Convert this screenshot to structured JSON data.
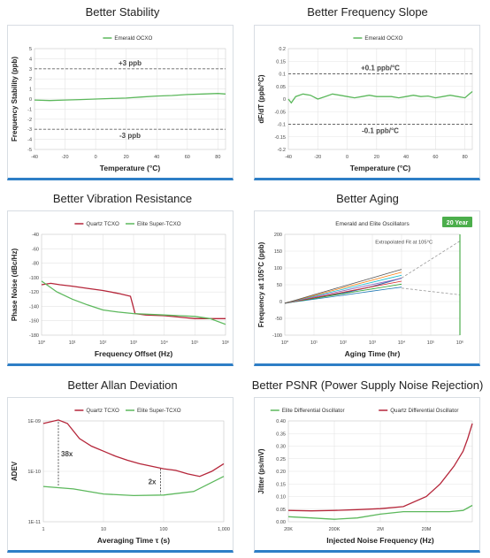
{
  "colors": {
    "green": "#5cb85c",
    "red": "#b5263a",
    "blue": "#2e7ec6",
    "grid": "#e4e4e4",
    "dash": "#666666",
    "dark": "#000000"
  },
  "panels": [
    {
      "id": "p0",
      "title": "Better Stability",
      "legend": [
        "Emerald OCXO"
      ],
      "xlabel": "Temperature (°C)",
      "ylabel": "Frequency Stability (ppb)",
      "annotations": [
        "+3 ppb",
        "-3 ppb"
      ],
      "xticks": [
        "-40",
        "-20",
        "0",
        "20",
        "40",
        "60",
        "80"
      ],
      "yticks": [
        "5",
        "4",
        "3",
        "2",
        "1",
        "0",
        "-1",
        "-2",
        "-3",
        "-4",
        "-5"
      ]
    },
    {
      "id": "p1",
      "title": "Better Frequency Slope",
      "legend": [
        "Emerald OCXO"
      ],
      "xlabel": "Temperature (°C)",
      "ylabel": "dF/dT (ppb/°C)",
      "annotations": [
        "+0.1 ppb/°C",
        "-0.1 ppb/°C"
      ],
      "xticks": [
        "-40",
        "-20",
        "0",
        "20",
        "40",
        "60",
        "80"
      ],
      "yticks": [
        "0.2",
        "0.15",
        "0.1",
        "0.05",
        "0",
        "-0.05",
        "-0.1",
        "-0.15",
        "-0.2"
      ]
    },
    {
      "id": "p2",
      "title": "Better Vibration Resistance",
      "legend": [
        "Quartz TCXO",
        "Elite Super-TCXO"
      ],
      "xlabel": "Frequency Offset (Hz)",
      "ylabel": "Phase Noise (dBc/Hz)",
      "annotations": [],
      "xticks": [
        "10⁰",
        "10¹",
        "10²",
        "10³",
        "10⁴",
        "10⁵",
        "10⁶"
      ],
      "yticks": [
        "-40",
        "-60",
        "-80",
        "-100",
        "-120",
        "-140",
        "-160",
        "-180"
      ]
    },
    {
      "id": "p3",
      "title": "Better Aging",
      "legend": [
        "Emerald and Elite Oscillators"
      ],
      "xlabel": "Aging Time (hr)",
      "ylabel": "Frequency at 105°C (ppb)",
      "annotations": [
        "Extrapolated Fit at 105°C",
        "20 Year"
      ],
      "xticks": [
        "10⁰",
        "10¹",
        "10²",
        "10³",
        "10⁴",
        "10⁵",
        "10⁶"
      ],
      "yticks": [
        "200",
        "150",
        "100",
        "50",
        "0",
        "-50",
        "-100"
      ]
    },
    {
      "id": "p4",
      "title": "Better Allan Deviation",
      "legend": [
        "Quartz TCXO",
        "Elite Super-TCXO"
      ],
      "xlabel": "Averaging Time τ (s)",
      "ylabel": "ADEV",
      "annotations": [
        "38x",
        "2x"
      ],
      "xticks": [
        "1",
        "10",
        "100",
        "1,000"
      ],
      "yticks": [
        "1E-09",
        "1E-10",
        "1E-11"
      ]
    },
    {
      "id": "p5",
      "title": "Better PSNR (Power Supply Noise Rejection)",
      "legend": [
        "Elite Differential Oscillator",
        "Quartz Differential Oscillator"
      ],
      "xlabel": "Injected Noise Frequency (Hz)",
      "ylabel": "Jitter (ps/mV)",
      "annotations": [],
      "xticks": [
        "20K",
        "200K",
        "2M",
        "20M"
      ],
      "yticks": [
        "0.40",
        "0.35",
        "0.30",
        "0.25",
        "0.20",
        "0.15",
        "0.10",
        "0.05",
        "0.00"
      ]
    }
  ],
  "chart_data": [
    {
      "type": "line",
      "xlim": [
        -40,
        85
      ],
      "ylim": [
        -5,
        5
      ],
      "series": [
        {
          "name": "Emerald OCXO",
          "x": [
            -40,
            -30,
            -20,
            -10,
            0,
            10,
            20,
            30,
            40,
            50,
            60,
            70,
            80,
            85
          ],
          "y": [
            -0.1,
            -0.15,
            -0.1,
            -0.05,
            0,
            0.05,
            0.1,
            0.2,
            0.3,
            0.35,
            0.45,
            0.5,
            0.55,
            0.5
          ]
        }
      ]
    },
    {
      "type": "line",
      "xlim": [
        -40,
        85
      ],
      "ylim": [
        -0.2,
        0.2
      ],
      "series": [
        {
          "name": "Emerald OCXO",
          "x": [
            -40,
            -38,
            -35,
            -30,
            -25,
            -20,
            -15,
            -10,
            -5,
            0,
            5,
            10,
            15,
            20,
            25,
            30,
            35,
            40,
            45,
            50,
            55,
            60,
            65,
            70,
            75,
            80,
            83,
            85
          ],
          "y": [
            0.0,
            -0.015,
            0.01,
            0.02,
            0.015,
            0.0,
            0.01,
            0.02,
            0.015,
            0.01,
            0.005,
            0.01,
            0.015,
            0.01,
            0.01,
            0.01,
            0.005,
            0.01,
            0.015,
            0.01,
            0.012,
            0.005,
            0.01,
            0.015,
            0.01,
            0.005,
            0.02,
            0.03
          ]
        }
      ]
    },
    {
      "type": "line",
      "xlim": [
        0,
        6
      ],
      "ylim": [
        -180,
        -40
      ],
      "xscale": "log",
      "series": [
        {
          "name": "Quartz TCXO",
          "x": [
            0,
            0.3,
            0.6,
            1,
            1.5,
            2,
            2.5,
            2.9,
            3.05,
            3.4,
            4,
            4.5,
            5,
            5.5,
            6
          ],
          "y": [
            -110,
            -108,
            -110,
            -112,
            -115,
            -118,
            -122,
            -126,
            -150,
            -152,
            -153,
            -155,
            -157,
            -157,
            -157
          ]
        },
        {
          "name": "Elite Super-TCXO",
          "x": [
            0,
            0.5,
            1,
            1.5,
            2,
            2.5,
            3,
            3.5,
            4,
            4.5,
            5,
            5.5,
            6
          ],
          "y": [
            -105,
            -120,
            -130,
            -138,
            -145,
            -148,
            -150,
            -151,
            -152,
            -153,
            -154,
            -157,
            -165
          ]
        }
      ]
    },
    {
      "type": "line",
      "xlim": [
        0,
        6
      ],
      "ylim": [
        -100,
        200
      ],
      "xscale": "log",
      "series": [
        {
          "name": "Emerald and Elite Oscillators",
          "x": [
            0,
            1,
            2,
            3,
            4
          ],
          "y": [
            -5,
            10,
            25,
            45,
            70
          ]
        },
        {
          "name": "Extrapolated Fit at 105°C",
          "x": [
            4,
            6
          ],
          "y": [
            70,
            180
          ]
        }
      ]
    },
    {
      "type": "line",
      "xlim": [
        0,
        3
      ],
      "ylim": [
        -11,
        -9
      ],
      "xscale": "log",
      "yscale": "log",
      "series": [
        {
          "name": "Quartz TCXO",
          "x": [
            0,
            0.25,
            0.4,
            0.6,
            0.8,
            1,
            1.2,
            1.4,
            1.6,
            1.8,
            2,
            2.2,
            2.4,
            2.6,
            2.8,
            3
          ],
          "y": [
            -9.05,
            -8.98,
            -9.05,
            -9.35,
            -9.5,
            -9.6,
            -9.7,
            -9.78,
            -9.85,
            -9.9,
            -9.95,
            -9.98,
            -10.05,
            -10.1,
            -10.0,
            -9.85
          ]
        },
        {
          "name": "Elite Super-TCXO",
          "x": [
            0,
            0.5,
            1,
            1.5,
            2,
            2.5,
            3
          ],
          "y": [
            -10.3,
            -10.35,
            -10.45,
            -10.48,
            -10.47,
            -10.4,
            -10.1
          ]
        }
      ]
    },
    {
      "type": "line",
      "xlim": [
        0,
        4
      ],
      "ylim": [
        0,
        0.4
      ],
      "xscale": "log",
      "series": [
        {
          "name": "Elite Differential Oscillator",
          "x": [
            0,
            0.5,
            1,
            1.5,
            2,
            2.5,
            3,
            3.5,
            3.8,
            4
          ],
          "y": [
            0.02,
            0.015,
            0.01,
            0.015,
            0.03,
            0.04,
            0.04,
            0.04,
            0.045,
            0.065
          ]
        },
        {
          "name": "Quartz Differential Oscillator",
          "x": [
            0,
            0.5,
            1,
            1.5,
            2,
            2.5,
            3,
            3.3,
            3.6,
            3.8,
            3.9,
            4
          ],
          "y": [
            0.045,
            0.043,
            0.045,
            0.048,
            0.052,
            0.06,
            0.1,
            0.15,
            0.22,
            0.28,
            0.33,
            0.39
          ]
        }
      ]
    }
  ]
}
